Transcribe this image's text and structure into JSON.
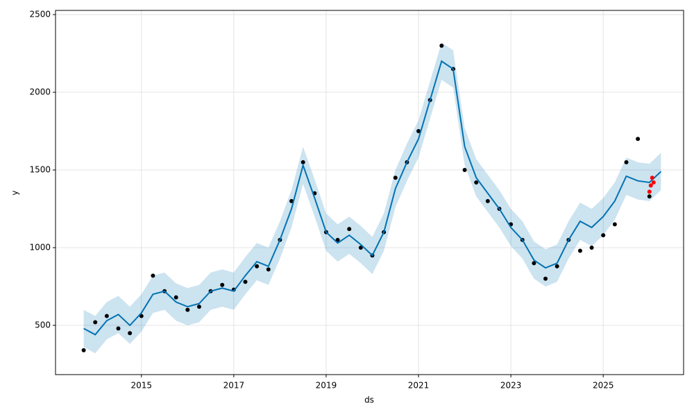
{
  "chart_data": {
    "type": "forecast",
    "x_label": "ds",
    "y_label": "y",
    "grid": true,
    "xlim": [
      2013.14,
      2026.74
    ],
    "xticks": [
      2015,
      2017,
      2019,
      2021,
      2023,
      2025
    ],
    "ylim": [
      183,
      2527
    ],
    "yticks": [
      500,
      1000,
      1500,
      2000,
      2500
    ],
    "points": {
      "color": "#000000",
      "x": [
        2013.75,
        2014,
        2014.25,
        2014.5,
        2014.75,
        2015,
        2015.25,
        2015.5,
        2015.75,
        2016,
        2016.25,
        2016.5,
        2016.75,
        2017,
        2017.25,
        2017.5,
        2017.75,
        2018,
        2018.25,
        2018.5,
        2018.75,
        2019,
        2019.25,
        2019.5,
        2019.75,
        2020,
        2020.25,
        2020.5,
        2020.75,
        2021,
        2021.25,
        2021.5,
        2021.75,
        2022,
        2022.25,
        2022.5,
        2022.75,
        2023,
        2023.25,
        2023.5,
        2023.75,
        2024,
        2024.25,
        2024.5,
        2024.75,
        2025,
        2025.25,
        2025.5,
        2025.75,
        2026
      ],
      "values": [
        340,
        520,
        560,
        480,
        450,
        560,
        820,
        720,
        680,
        600,
        620,
        720,
        760,
        730,
        780,
        880,
        860,
        1050,
        1300,
        1550,
        1350,
        1100,
        1050,
        1120,
        1000,
        950,
        1100,
        1450,
        1550,
        1750,
        1950,
        2300,
        2150,
        1500,
        1420,
        1300,
        1250,
        1150,
        1050,
        900,
        800,
        880,
        1050,
        980,
        1000,
        1080,
        1150,
        1550,
        1700,
        1330
      ]
    },
    "future_points": {
      "color": "#ff0000",
      "x": [
        2026,
        2026.03,
        2026.06,
        2026.09
      ],
      "values": [
        1360,
        1400,
        1450,
        1420
      ]
    },
    "forecast": {
      "color": "#0072b2",
      "band_color": "#0072b2",
      "x": [
        2013.75,
        2014,
        2014.25,
        2014.5,
        2014.75,
        2015,
        2015.25,
        2015.5,
        2015.75,
        2016,
        2016.25,
        2016.5,
        2016.75,
        2017,
        2017.25,
        2017.5,
        2017.75,
        2018,
        2018.25,
        2018.5,
        2018.75,
        2019,
        2019.25,
        2019.5,
        2019.75,
        2020,
        2020.25,
        2020.5,
        2020.75,
        2021,
        2021.25,
        2021.5,
        2021.75,
        2022,
        2022.25,
        2022.5,
        2022.75,
        2023,
        2023.25,
        2023.5,
        2023.75,
        2024,
        2024.25,
        2024.5,
        2024.75,
        2025,
        2025.25,
        2025.5,
        2025.75,
        2026,
        2026.25
      ],
      "values": [
        480,
        440,
        530,
        570,
        500,
        580,
        700,
        720,
        650,
        620,
        640,
        720,
        740,
        720,
        820,
        910,
        880,
        1050,
        1250,
        1530,
        1320,
        1100,
        1030,
        1080,
        1020,
        950,
        1100,
        1380,
        1550,
        1700,
        1950,
        2200,
        2150,
        1650,
        1450,
        1350,
        1250,
        1130,
        1050,
        920,
        870,
        900,
        1050,
        1170,
        1130,
        1200,
        1300,
        1460,
        1430,
        1420,
        1490
      ],
      "lower": [
        360,
        320,
        410,
        450,
        380,
        460,
        580,
        600,
        530,
        500,
        520,
        600,
        620,
        600,
        700,
        790,
        760,
        930,
        1130,
        1410,
        1200,
        980,
        910,
        960,
        900,
        830,
        980,
        1260,
        1430,
        1580,
        1830,
        2080,
        2030,
        1530,
        1330,
        1230,
        1130,
        1010,
        930,
        800,
        750,
        780,
        930,
        1050,
        1010,
        1080,
        1180,
        1340,
        1310,
        1300,
        1370
      ],
      "upper": [
        600,
        560,
        650,
        690,
        620,
        700,
        820,
        840,
        770,
        740,
        760,
        840,
        860,
        840,
        940,
        1030,
        1000,
        1170,
        1370,
        1650,
        1440,
        1220,
        1150,
        1200,
        1140,
        1070,
        1220,
        1500,
        1670,
        1820,
        2070,
        2320,
        2270,
        1770,
        1570,
        1470,
        1370,
        1250,
        1170,
        1040,
        990,
        1020,
        1170,
        1290,
        1250,
        1320,
        1420,
        1580,
        1550,
        1540,
        1610
      ]
    }
  }
}
